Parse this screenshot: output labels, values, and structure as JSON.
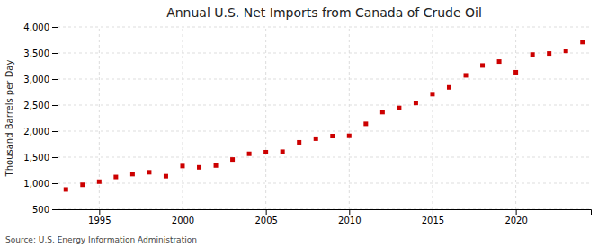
{
  "chart_data": {
    "type": "scatter",
    "title": "Annual U.S. Net Imports from Canada of Crude Oil",
    "ylabel": "Thousand Barrels per Day",
    "annotation": "Source: U.S. Energy Information Administration",
    "x": [
      1993,
      1994,
      1995,
      1996,
      1997,
      1998,
      1999,
      2000,
      2001,
      2002,
      2003,
      2004,
      2005,
      2006,
      2007,
      2008,
      2009,
      2010,
      2011,
      2012,
      2013,
      2014,
      2015,
      2016,
      2017,
      2018,
      2019,
      2020,
      2021,
      2022,
      2023,
      2024
    ],
    "values": [
      880,
      970,
      1030,
      1120,
      1175,
      1210,
      1135,
      1330,
      1305,
      1340,
      1455,
      1565,
      1595,
      1605,
      1785,
      1855,
      1905,
      1910,
      2140,
      2365,
      2445,
      2540,
      2710,
      2840,
      3070,
      3260,
      3335,
      3130,
      3470,
      3490,
      3540,
      3710
    ],
    "color": "#cc0000",
    "marker": "square",
    "xlim": [
      1992.5,
      2024.5
    ],
    "xticks": [
      1995,
      2000,
      2005,
      2010,
      2015,
      2020
    ],
    "ylim": [
      500,
      4000
    ],
    "yticks": [
      500,
      {
        "value": 1000,
        "label": "1,000"
      },
      {
        "value": 1500,
        "label": "1,500"
      },
      {
        "value": 2000,
        "label": "2,000"
      },
      {
        "value": 2500,
        "label": "2,500"
      },
      {
        "value": 3000,
        "label": "3,000"
      },
      {
        "value": 3500,
        "label": "3,500"
      },
      {
        "value": 4000,
        "label": "4,000"
      }
    ],
    "grid": true
  }
}
